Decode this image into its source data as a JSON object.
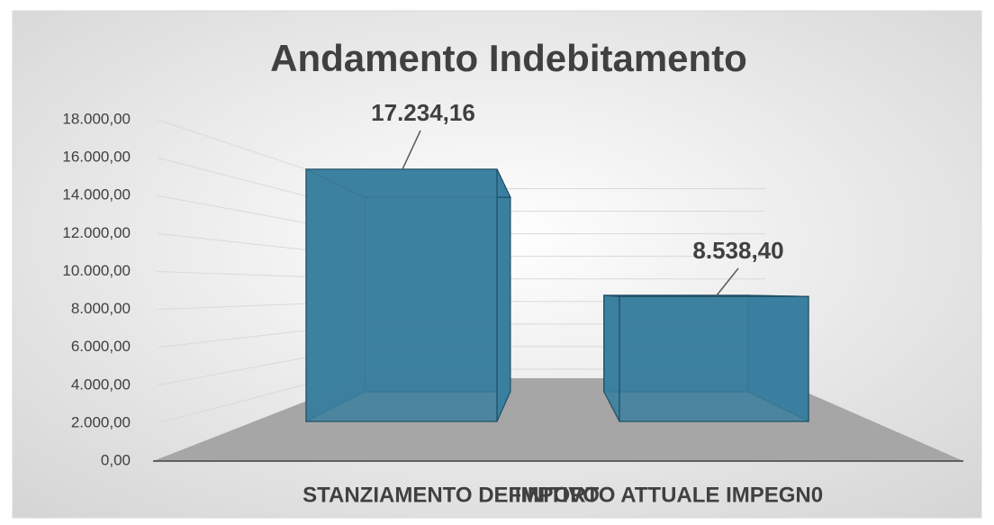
{
  "chart_data": {
    "type": "bar",
    "title": "Andamento Indebitamento",
    "categories": [
      "STANZIAMENTO DEFINITIVO",
      "IMPORTO ATTUALE IMPEGN0"
    ],
    "values": [
      17234.16,
      8538.4
    ],
    "value_labels": [
      "17.234,16",
      "8.538,40"
    ],
    "color": "#3b7f9f",
    "ylim": [
      0,
      18000
    ],
    "yticks": [
      {
        "value": 0,
        "label": "0,00"
      },
      {
        "value": 2000,
        "label": "2.000,00"
      },
      {
        "value": 4000,
        "label": "4.000,00"
      },
      {
        "value": 6000,
        "label": "6.000,00"
      },
      {
        "value": 8000,
        "label": "8.000,00"
      },
      {
        "value": 10000,
        "label": "10.000,00"
      },
      {
        "value": 12000,
        "label": "12.000,00"
      },
      {
        "value": 14000,
        "label": "14.000,00"
      },
      {
        "value": 16000,
        "label": "16.000,00"
      },
      {
        "value": 18000,
        "label": "18.000,00"
      }
    ],
    "grid": true
  }
}
